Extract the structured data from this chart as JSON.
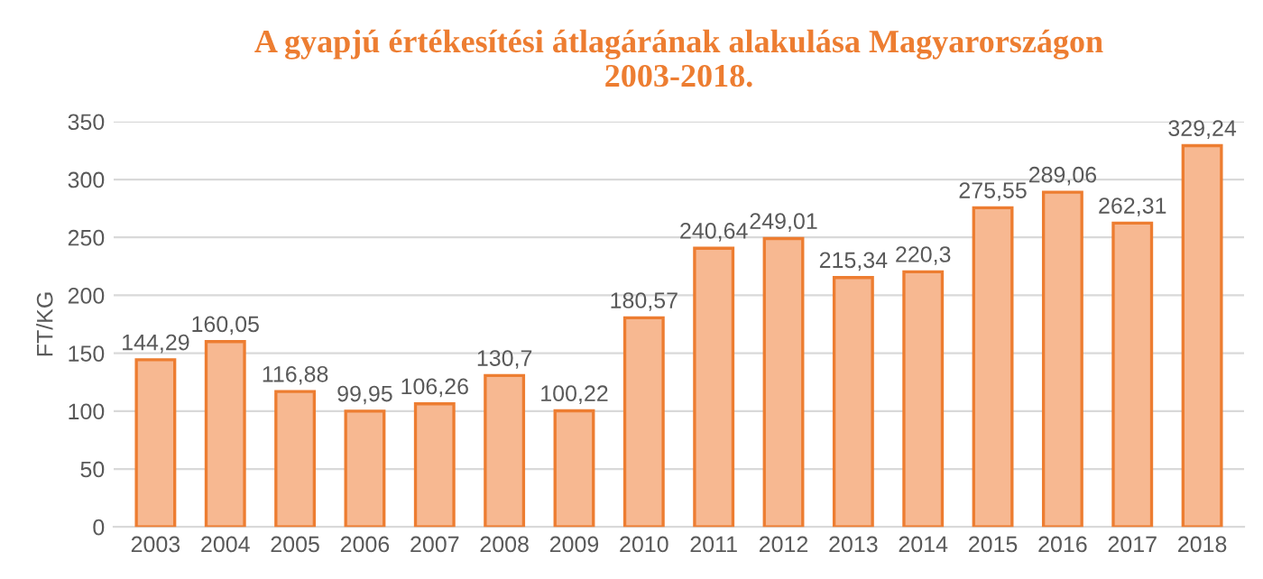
{
  "chart_data": {
    "type": "bar",
    "title": "A gyapjú értékesítési átlagárának alakulása Magyarországon\n2003-2018.",
    "ylabel": "FT/KG",
    "categories": [
      "2003",
      "2004",
      "2005",
      "2006",
      "2007",
      "2008",
      "2009",
      "2010",
      "2011",
      "2012",
      "2013",
      "2014",
      "2015",
      "2016",
      "2017",
      "2018"
    ],
    "values": [
      144.29,
      160.05,
      116.88,
      99.95,
      106.26,
      130.7,
      100.22,
      180.57,
      240.64,
      249.01,
      215.34,
      220.3,
      275.55,
      289.06,
      262.31,
      329.24
    ],
    "value_labels": [
      "144,29",
      "160,05",
      "116,88",
      "99,95",
      "106,26",
      "130,7",
      "100,22",
      "180,57",
      "240,64",
      "249,01",
      "215,34",
      "220,3",
      "275,55",
      "289,06",
      "262,31",
      "329,24"
    ],
    "color": "#f7b891",
    "ylim": [
      0,
      350
    ],
    "yticks": [
      0,
      50,
      100,
      150,
      200,
      250,
      300,
      350
    ],
    "grid": "y"
  }
}
